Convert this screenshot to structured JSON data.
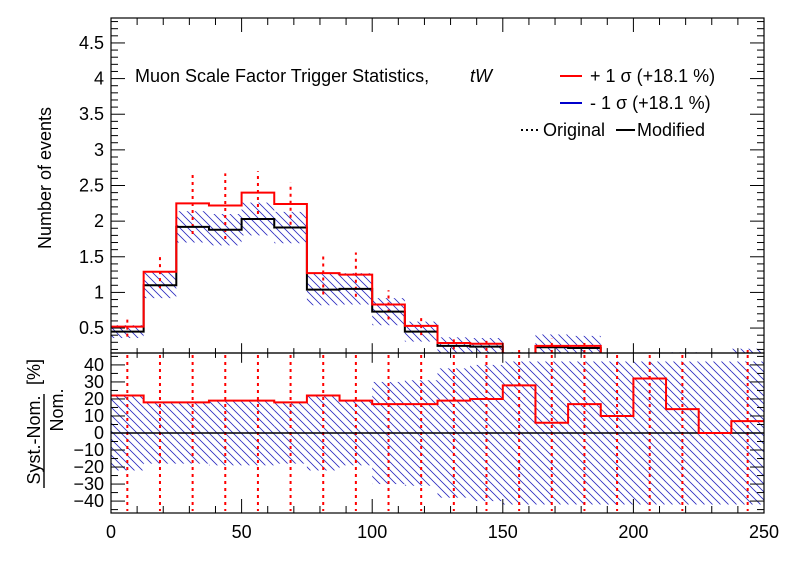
{
  "chart_data": {
    "type": "histogram",
    "x_bin_edges": [
      0,
      12.5,
      25,
      37.5,
      50,
      62.5,
      75,
      87.5,
      100,
      112.5,
      125,
      137.5,
      150,
      162.5,
      175,
      187.5,
      200,
      212.5,
      225,
      237.5,
      250
    ],
    "top_panel": {
      "ylabel": "Number of events",
      "ylim": [
        0.15,
        4.85
      ],
      "yticks": [
        "0.5",
        "1",
        "1.5",
        "2",
        "2.5",
        "3",
        "3.5",
        "4",
        "4.5"
      ],
      "annotation": "Muon Scale Factor Trigger Statistics,",
      "annotation_italic": "tW",
      "series": [
        {
          "name": "+ 1 σ (+18.1 %)",
          "color": "#ff0000",
          "style": "solid",
          "values": [
            0.52,
            1.29,
            2.25,
            2.22,
            2.4,
            2.24,
            1.27,
            1.25,
            0.83,
            0.53,
            0.29,
            0.28,
            0.12,
            0.25,
            0.25,
            0.06,
            0.04,
            0.07,
            0.0,
            0.12
          ]
        },
        {
          "name": "- 1 σ (+18.1 %)",
          "color": "#0000cc",
          "style": "solid",
          "values": [
            0.45,
            1.1,
            1.92,
            1.88,
            2.03,
            1.91,
            1.04,
            1.05,
            0.73,
            0.45,
            0.25,
            0.24,
            0.09,
            0.23,
            0.22,
            0.05,
            0.03,
            0.07,
            0.0,
            0.12
          ]
        },
        {
          "name": "Modified",
          "color": "#000000",
          "style": "solid",
          "values": [
            0.45,
            1.1,
            1.92,
            1.88,
            2.03,
            1.91,
            1.04,
            1.05,
            0.73,
            0.45,
            0.25,
            0.24,
            0.09,
            0.23,
            0.22,
            0.05,
            0.03,
            0.07,
            0.0,
            0.12
          ]
        },
        {
          "name": "Original",
          "color": "#000000",
          "style": "dotted"
        }
      ],
      "stat_band": {
        "lower": [
          0.36,
          0.92,
          1.7,
          1.66,
          1.8,
          1.69,
          0.82,
          0.83,
          0.54,
          0.31,
          0.13,
          0.12,
          0.02,
          0.05,
          0.05,
          0.0,
          0.0,
          0.0,
          0.0,
          0.0
        ],
        "upper": [
          0.54,
          1.28,
          2.14,
          2.1,
          2.26,
          2.13,
          1.26,
          1.27,
          0.92,
          0.59,
          0.37,
          0.36,
          0.16,
          0.41,
          0.39,
          0.12,
          0.08,
          0.16,
          0.0,
          0.21
        ]
      },
      "dotted_errors": {
        "lower": [
          0.38,
          1.06,
          1.82,
          1.75,
          2.1,
          1.95,
          0.97,
          0.94,
          0.62,
          0.4,
          0.2,
          0.18,
          0.04,
          0.1,
          0.12,
          0.0,
          0.0,
          0.0,
          0.0,
          0.0
        ],
        "upper": [
          0.67,
          1.52,
          2.68,
          2.67,
          2.7,
          2.54,
          1.56,
          1.56,
          1.03,
          0.67,
          0.37,
          0.36,
          0.21,
          0.35,
          0.31,
          0.1,
          0.08,
          0.14,
          0.0,
          0.2
        ]
      }
    },
    "ratio_panel": {
      "ylabel_numerator": "Syst.-Nom.",
      "ylabel_denominator": "Nom.",
      "ylabel_unit": "[%]",
      "ylim": [
        -47,
        47
      ],
      "yticks": [
        "−40",
        "−30",
        "−20",
        "−10",
        "0",
        "10",
        "20",
        "30",
        "40"
      ],
      "ratio_values": [
        22,
        18,
        18,
        19,
        19,
        18,
        22,
        19,
        17,
        17,
        19,
        20,
        28,
        6,
        17,
        10,
        32,
        14,
        0,
        7
      ],
      "band_half_width": [
        22,
        18,
        18,
        19,
        19,
        18,
        22,
        19,
        30,
        31,
        38,
        40,
        42,
        42,
        42,
        42,
        42,
        42,
        42,
        42
      ]
    },
    "x_axis": {
      "xlim": [
        0,
        250
      ],
      "tick_labels": [
        "0",
        "50",
        "100",
        "150",
        "200",
        "250"
      ]
    },
    "legend_position": "top-right"
  }
}
